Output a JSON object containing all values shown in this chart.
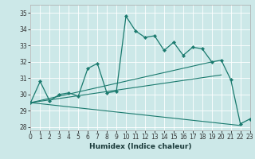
{
  "title": "",
  "xlabel": "Humidex (Indice chaleur)",
  "xlim": [
    0,
    23
  ],
  "ylim": [
    27.8,
    35.5
  ],
  "yticks": [
    28,
    29,
    30,
    31,
    32,
    33,
    34,
    35
  ],
  "xticks": [
    0,
    1,
    2,
    3,
    4,
    5,
    6,
    7,
    8,
    9,
    10,
    11,
    12,
    13,
    14,
    15,
    16,
    17,
    18,
    19,
    20,
    21,
    22,
    23
  ],
  "bg_color": "#cce8e8",
  "line_color": "#1a7a6e",
  "main_line": [
    29.5,
    30.8,
    29.6,
    30.0,
    30.1,
    29.9,
    31.6,
    31.9,
    30.1,
    30.2,
    34.8,
    33.9,
    33.5,
    33.6,
    32.7,
    33.2,
    32.4,
    32.9,
    32.8,
    32.0,
    32.1,
    30.9,
    28.2,
    28.5
  ],
  "straight_lines": [
    {
      "x0": 0,
      "y0": 29.5,
      "x1": 19,
      "y1": 32.0
    },
    {
      "x0": 0,
      "y0": 29.5,
      "x1": 20,
      "y1": 31.2
    },
    {
      "x0": 0,
      "y0": 29.5,
      "x1": 22,
      "y1": 28.1
    }
  ],
  "grid_color": "#b0d4d4",
  "tick_fontsize": 5.5,
  "xlabel_fontsize": 6.5
}
